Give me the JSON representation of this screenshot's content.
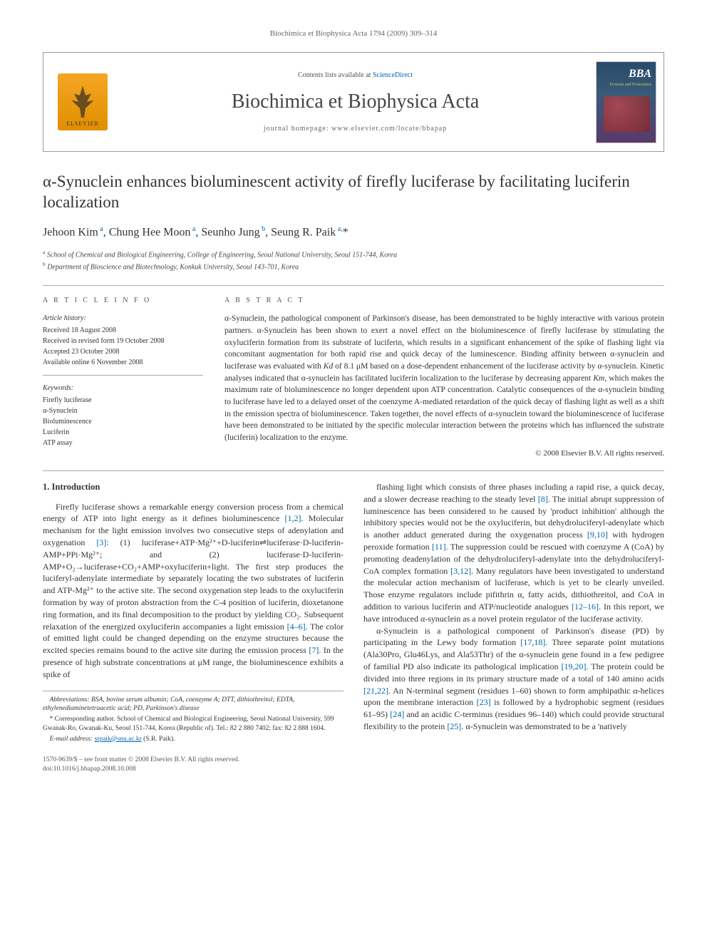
{
  "running_head": "Biochimica et Biophysica Acta 1794 (2009) 309–314",
  "masthead": {
    "contents_prefix": "Contents lists available at ",
    "contents_link": "ScienceDirect",
    "journal_name": "Biochimica et Biophysica Acta",
    "homepage_prefix": "journal homepage: ",
    "homepage_url": "www.elsevier.com/locate/bbapap",
    "publisher": "ELSEVIER",
    "cover_bba": "BBA",
    "cover_sub": "Proteins and Proteomics"
  },
  "article_title": "α-Synuclein enhances bioluminescent activity of firefly luciferase by facilitating luciferin localization",
  "authors_html": "Jehoon Kim <sup>a</sup>, Chung Hee Moon <sup>a</sup>, Seunho Jung <sup>b</sup>, Seung R. Paik <sup>a,</sup>*",
  "affiliations": {
    "a": "School of Chemical and Biological Engineering, College of Engineering, Seoul National University, Seoul 151-744, Korea",
    "b": "Department of Bioscience and Biotechnology, Konkuk University, Seoul 143-701, Korea"
  },
  "info_head": "A R T I C L E   I N F O",
  "history_head": "Article history:",
  "history": [
    "Received 18 August 2008",
    "Received in revised form 19 October 2008",
    "Accepted 23 October 2008",
    "Available online 6 November 2008"
  ],
  "keywords_head": "Keywords:",
  "keywords": [
    "Firefly luciferase",
    "α-Synuclein",
    "Bioluminescence",
    "Luciferin",
    "ATP assay"
  ],
  "abstract_head": "A B S T R A C T",
  "abstract": "α-Synuclein, the pathological component of Parkinson's disease, has been demonstrated to be highly interactive with various protein partners. α-Synuclein has been shown to exert a novel effect on the bioluminescence of firefly luciferase by stimulating the oxyluciferin formation from its substrate of luciferin, which results in a significant enhancement of the spike of flashing light via concomitant augmentation for both rapid rise and quick decay of the luminescence. Binding affinity between α-synuclein and luciferase was evaluated with Kd of 8.1 μM based on a dose-dependent enhancement of the luciferase activity by α-synuclein. Kinetic analyses indicated that α-synuclein has facilitated luciferin localization to the luciferase by decreasing apparent Km, which makes the maximum rate of bioluminescence no longer dependent upon ATP concentration. Catalytic consequences of the α-synuclein binding to luciferase have led to a delayed onset of the coenzyme A-mediated retardation of the quick decay of flashing light as well as a shift in the emission spectra of bioluminescence. Taken together, the novel effects of α-synuclein toward the bioluminescence of luciferase have been demonstrated to be initiated by the specific molecular interaction between the proteins which has influenced the substrate (luciferin) localization to the enzyme.",
  "copyright": "© 2008 Elsevier B.V. All rights reserved.",
  "section1_head": "1. Introduction",
  "para1": "Firefly luciferase shows a remarkable energy conversion process from a chemical energy of ATP into light energy as it defines bioluminescence [1,2]. Molecular mechanism for the light emission involves two consecutive steps of adenylation and oxygenation [3]: (1) luciferase+ATP·Mg²⁺+D-luciferin⇌luciferase·D-luciferin-AMP+PPi·Mg²⁺; and (2) luciferase·D-luciferin-AMP+O₂→luciferase+CO₂+AMP+oxyluciferin+light. The first step produces the luciferyl-adenylate intermediate by separately locating the two substrates of luciferin and ATP-Mg²⁺ to the active site. The second oxygenation step leads to the oxyluciferin formation by way of proton abstraction from the C-4 position of luciferin, dioxetanone ring formation, and its final decomposition to the product by yielding CO₂. Subsequent relaxation of the energized oxyluciferin accompanies a light emission [4–6]. The color of emitted light could be changed depending on the enzyme structures because the excited species remains bound to the active site during the emission process [7]. In the presence of high substrate concentrations at μM range, the bioluminescence exhibits a spike of",
  "para2": "flashing light which consists of three phases including a rapid rise, a quick decay, and a slower decrease reaching to the steady level [8]. The initial abrupt suppression of luminescence has been considered to be caused by 'product inhibition' although the inhibitory species would not be the oxyluciferin, but dehydroluciferyl-adenylate which is another adduct generated during the oxygenation process [9,10] with hydrogen peroxide formation [11]. The suppression could be rescued with coenzyme A (CoA) by promoting deadenylation of the dehydroluciferyl-adenylate into the dehydroluciferyl-CoA complex formation [3,12]. Many regulators have been investigated to understand the molecular action mechanism of luciferase, which is yet to be clearly unveiled. Those enzyme regulators include pifithrin α, fatty acids, dithiothreitol, and CoA in addition to various luciferin and ATP/nucleotide analogues [12–16]. In this report, we have introduced α-synuclein as a novel protein regulator of the luciferase activity.",
  "para3": "α-Synuclein is a pathological component of Parkinson's disease (PD) by participating in the Lewy body formation [17,18]. Three separate point mutations (Ala30Pro, Glu46Lys, and Ala53Thr) of the α-synuclein gene found in a few pedigree of familial PD also indicate its pathological implication [19,20]. The protein could be divided into three regions in its primary structure made of a total of 140 amino acids [21,22]. An N-terminal segment (residues 1–60) shown to form amphipathic α-helices upon the membrane interaction [23] is followed by a hydrophobic segment (residues 61–95) [24] and an acidic C-terminus (residues 96–140) which could provide structural flexibility to the protein [25]. α-Synuclein was demonstrated to be a 'natively",
  "footnotes": {
    "abbrev": "Abbreviations: BSA, bovine serum albumin; CoA, coenzyme A; DTT, dithiothreitol; EDTA, ethylenediaminetetraacetic acid; PD, Parkinson's disease",
    "corr": "* Corresponding author. School of Chemical and Biological Engineering, Seoul National University, 599 Gwanak-Ro, Gwanak-Ku, Seoul 151-744, Korea (Republic of). Tel.: 82 2 880 7402; fax: 82 2 888 1604.",
    "email_label": "E-mail address:",
    "email": "srpaik@snu.ac.kr",
    "email_who": "(S.R. Paik)."
  },
  "footer": {
    "left1": "1570-9639/$ – see front matter © 2008 Elsevier B.V. All rights reserved.",
    "left2": "doi:10.1016/j.bbapap.2008.10.008"
  },
  "colors": {
    "link": "#0066aa",
    "text": "#333333",
    "muted": "#666666",
    "rule": "#aaaaaa",
    "elsevier_bg": "#f5a623",
    "cover_grad_top": "#2a4a6a",
    "cover_grad_bot": "#5a3a6a"
  },
  "typography": {
    "title_fontsize": 23,
    "journal_fontsize": 28,
    "authors_fontsize": 16,
    "body_fontsize": 12,
    "abstract_fontsize": 11.5,
    "footnote_fontsize": 9.5
  }
}
